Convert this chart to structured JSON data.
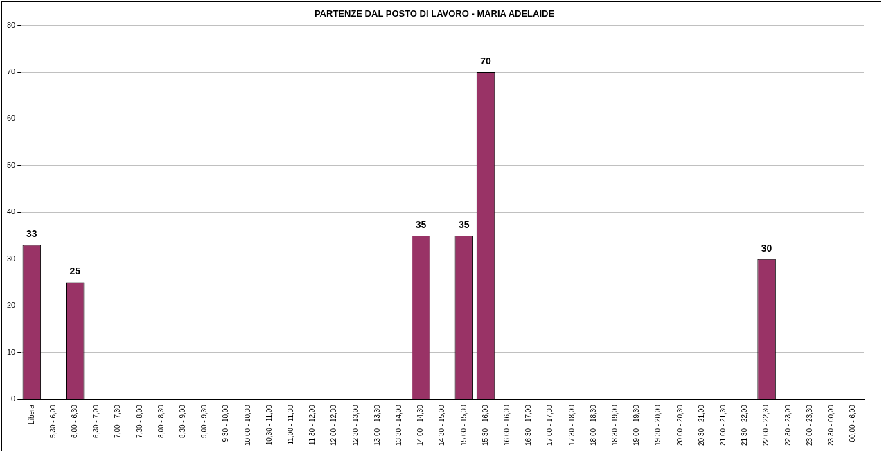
{
  "chart_data": {
    "type": "bar",
    "title": "PARTENZE DAL POSTO DI LAVORO - MARIA ADELAIDE",
    "categories": [
      "Libera",
      "5,30 - 6,00",
      "6,00 - 6,30",
      "6,30 - 7,00",
      "7,00 - 7,30",
      "7,30 - 8,00",
      "8,00 - 8,30",
      "8,30 - 9,00",
      "9,00 - 9,30",
      "9,30 - 10,00",
      "10,00 - 10,30",
      "10,30 - 11,00",
      "11,00 - 11,30",
      "11,30 - 12,00",
      "12,00 - 12,30",
      "12,30 - 13,00",
      "13,00 - 13,30",
      "13,30 - 14,00",
      "14,00 - 14,30",
      "14,30 - 15,00",
      "15,00 - 15,30",
      "15,30 - 16,00",
      "16,00 - 16,30",
      "16,30 - 17,00",
      "17,00 - 17,30",
      "17,30 - 18,00",
      "18,00 - 18,30",
      "18,30 - 19,00",
      "19,00 - 19,30",
      "19,30 - 20,00",
      "20,00 - 20,30",
      "20,30 - 21,00",
      "21,00 - 21,30",
      "21,30 - 22,00",
      "22,00 - 22,30",
      "22,30 - 23,00",
      "23,00 - 23,30",
      "23,30 - 00,00",
      "00,00 - 6,00"
    ],
    "values": [
      33,
      0,
      25,
      0,
      0,
      0,
      0,
      0,
      0,
      0,
      0,
      0,
      0,
      0,
      0,
      0,
      0,
      0,
      35,
      0,
      35,
      70,
      0,
      0,
      0,
      0,
      0,
      0,
      0,
      0,
      0,
      0,
      0,
      0,
      30,
      0,
      0,
      0,
      0
    ],
    "value_labels": [
      "33",
      null,
      "25",
      null,
      null,
      null,
      null,
      null,
      null,
      null,
      null,
      null,
      null,
      null,
      null,
      null,
      null,
      null,
      "35",
      null,
      "35",
      "70",
      null,
      null,
      null,
      null,
      null,
      null,
      null,
      null,
      null,
      null,
      null,
      null,
      "30",
      null,
      null,
      null,
      null
    ],
    "color": "#993366",
    "ylim": [
      0,
      80
    ],
    "yticks": [
      0,
      10,
      20,
      30,
      40,
      50,
      60,
      70,
      80
    ],
    "grid": "y",
    "legend": false
  }
}
